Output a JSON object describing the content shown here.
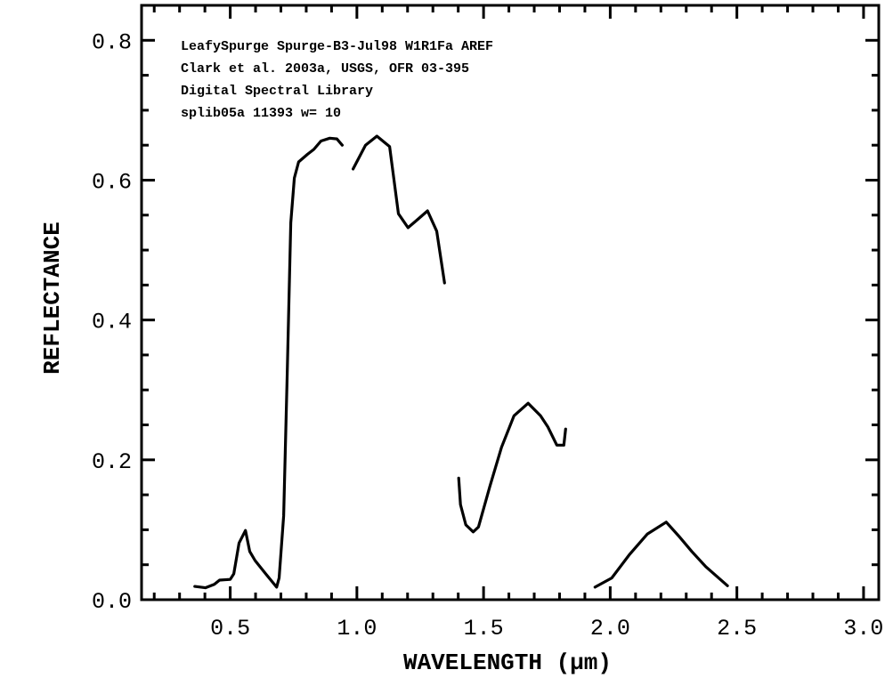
{
  "chart_data": {
    "type": "line",
    "title": "",
    "annotations": [
      "LeafySpurge Spurge-B3-Jul98  W1R1Fa AREF",
      "Clark et al. 2003a, USGS, OFR 03-395",
      "Digital Spectral Library",
      "splib05a 11393 w= 10"
    ],
    "xlabel": "WAVELENGTH (µm)",
    "ylabel": "REFLECTANCE",
    "xlim": [
      0.15,
      3.06
    ],
    "ylim": [
      0.0,
      0.85
    ],
    "xticks": [
      {
        "value": 0.5,
        "label": "0.5"
      },
      {
        "value": 1.0,
        "label": "1.0"
      },
      {
        "value": 1.5,
        "label": "1.5"
      },
      {
        "value": 2.0,
        "label": "2.0"
      },
      {
        "value": 2.5,
        "label": "2.5"
      },
      {
        "value": 3.0,
        "label": "3.0"
      }
    ],
    "yticks": [
      {
        "value": 0.0,
        "label": "0.0"
      },
      {
        "value": 0.2,
        "label": "0.2"
      },
      {
        "value": 0.4,
        "label": "0.4"
      },
      {
        "value": 0.6,
        "label": "0.6"
      },
      {
        "value": 0.8,
        "label": "0.8"
      }
    ],
    "x_minor_step": 0.1,
    "y_minor_step": 0.05,
    "grid": false,
    "line_color": "#000000",
    "segments": [
      [
        [
          0.36,
          0.019
        ],
        [
          0.402,
          0.017
        ],
        [
          0.437,
          0.022
        ],
        [
          0.458,
          0.028
        ],
        [
          0.5,
          0.029
        ],
        [
          0.514,
          0.037
        ],
        [
          0.535,
          0.081
        ],
        [
          0.56,
          0.099
        ],
        [
          0.577,
          0.069
        ],
        [
          0.598,
          0.056
        ],
        [
          0.64,
          0.037
        ],
        [
          0.683,
          0.018
        ],
        [
          0.693,
          0.031
        ],
        [
          0.711,
          0.12
        ],
        [
          0.725,
          0.323
        ],
        [
          0.739,
          0.539
        ],
        [
          0.753,
          0.603
        ],
        [
          0.77,
          0.626
        ],
        [
          0.805,
          0.637
        ],
        [
          0.83,
          0.644
        ],
        [
          0.858,
          0.656
        ],
        [
          0.893,
          0.66
        ],
        [
          0.921,
          0.659
        ],
        [
          0.942,
          0.65
        ]
      ],
      [
        [
          0.985,
          0.616
        ],
        [
          1.034,
          0.65
        ],
        [
          1.079,
          0.663
        ],
        [
          1.129,
          0.648
        ],
        [
          1.164,
          0.552
        ],
        [
          1.202,
          0.532
        ],
        [
          1.234,
          0.542
        ],
        [
          1.279,
          0.556
        ],
        [
          1.315,
          0.527
        ],
        [
          1.346,
          0.453
        ]
      ],
      [
        [
          1.402,
          0.174
        ],
        [
          1.409,
          0.136
        ],
        [
          1.43,
          0.107
        ],
        [
          1.459,
          0.097
        ],
        [
          1.48,
          0.104
        ],
        [
          1.525,
          0.162
        ],
        [
          1.571,
          0.218
        ],
        [
          1.62,
          0.263
        ],
        [
          1.676,
          0.281
        ],
        [
          1.725,
          0.263
        ],
        [
          1.754,
          0.247
        ],
        [
          1.789,
          0.221
        ],
        [
          1.817,
          0.221
        ],
        [
          1.824,
          0.244
        ]
      ],
      [
        [
          1.94,
          0.018
        ],
        [
          2.006,
          0.031
        ],
        [
          2.077,
          0.065
        ],
        [
          2.147,
          0.094
        ],
        [
          2.221,
          0.111
        ],
        [
          2.273,
          0.09
        ],
        [
          2.322,
          0.069
        ],
        [
          2.378,
          0.047
        ],
        [
          2.463,
          0.02
        ]
      ]
    ]
  }
}
